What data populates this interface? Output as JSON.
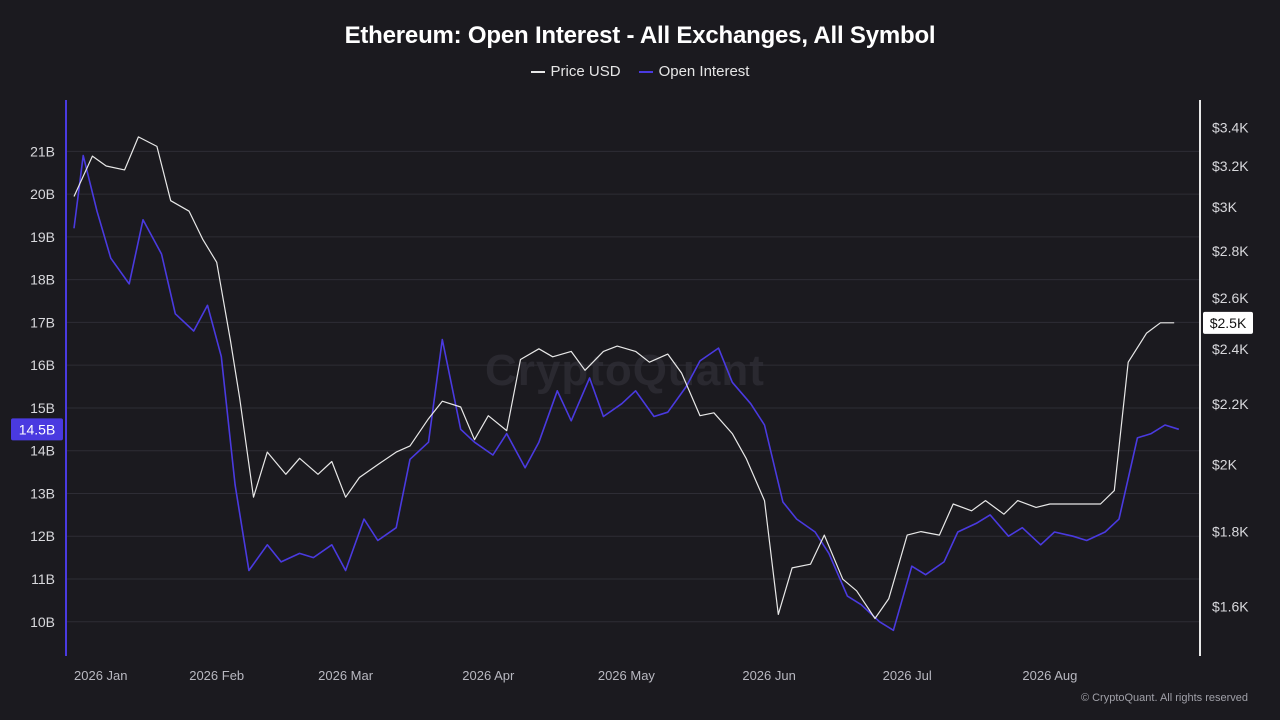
{
  "chart_data": {
    "type": "line",
    "title": "Ethereum: Open Interest - All Exchanges, All Symbol",
    "x_ticks": [
      "2026 Jan",
      "2026 Feb",
      "2026 Mar",
      "2026 Apr",
      "2026 May",
      "2026 Jun",
      "2026 Jul",
      "2026 Aug"
    ],
    "left_axis": {
      "ticks": [
        "21B",
        "20B",
        "19B",
        "18B",
        "17B",
        "16B",
        "15B",
        "14B",
        "13B",
        "12B",
        "11B",
        "10B"
      ],
      "range": [
        9.2,
        22.2
      ],
      "current_label": "14.5B",
      "current_value": 14.5
    },
    "right_axis": {
      "ticks": [
        "$3.4K",
        "$3.2K",
        "$3K",
        "$2.8K",
        "$2.6K",
        "$2.4K",
        "$2.2K",
        "$2K",
        "$1.8K",
        "$1.6K"
      ],
      "range_log": true,
      "current_label": "$2.5K",
      "current_value": 2500
    },
    "series": [
      {
        "name": "Price USD",
        "color": "#e8e8e8",
        "dates": [
          "2026-01-01",
          "2026-01-05",
          "2026-01-08",
          "2026-01-12",
          "2026-01-15",
          "2026-01-19",
          "2026-01-22",
          "2026-01-26",
          "2026-01-29",
          "2026-02-01",
          "2026-02-04",
          "2026-02-06",
          "2026-02-09",
          "2026-02-12",
          "2026-02-16",
          "2026-02-19",
          "2026-02-23",
          "2026-02-26",
          "2026-03-01",
          "2026-03-04",
          "2026-03-08",
          "2026-03-12",
          "2026-03-15",
          "2026-03-19",
          "2026-03-22",
          "2026-03-26",
          "2026-03-29",
          "2026-04-01",
          "2026-04-05",
          "2026-04-08",
          "2026-04-12",
          "2026-04-15",
          "2026-04-19",
          "2026-04-22",
          "2026-04-26",
          "2026-04-29",
          "2026-05-03",
          "2026-05-06",
          "2026-05-10",
          "2026-05-13",
          "2026-05-17",
          "2026-05-20",
          "2026-05-24",
          "2026-05-27",
          "2026-05-31",
          "2026-06-03",
          "2026-06-06",
          "2026-06-10",
          "2026-06-13",
          "2026-06-17",
          "2026-06-20",
          "2026-06-24",
          "2026-06-27",
          "2026-07-01",
          "2026-07-04",
          "2026-07-08",
          "2026-07-11",
          "2026-07-15",
          "2026-07-18",
          "2026-07-22",
          "2026-07-25",
          "2026-07-29",
          "2026-08-01",
          "2026-08-05",
          "2026-08-08",
          "2026-08-12",
          "2026-08-15",
          "2026-08-18",
          "2026-08-22",
          "2026-08-25",
          "2026-08-28"
        ],
        "values": [
          3050,
          3250,
          3200,
          3180,
          3350,
          3300,
          3030,
          2980,
          2850,
          2750,
          2430,
          2220,
          1900,
          2040,
          1970,
          2020,
          1970,
          2010,
          1900,
          1960,
          2000,
          2040,
          2060,
          2150,
          2210,
          2190,
          2080,
          2160,
          2110,
          2360,
          2400,
          2370,
          2390,
          2320,
          2390,
          2410,
          2390,
          2350,
          2380,
          2310,
          2160,
          2170,
          2100,
          2020,
          1890,
          1580,
          1700,
          1710,
          1790,
          1670,
          1640,
          1570,
          1620,
          1790,
          1800,
          1790,
          1880,
          1860,
          1890,
          1850,
          1890,
          1870,
          1880,
          1880,
          1880,
          1880,
          1920,
          2350,
          2460,
          2500,
          2500
        ]
      },
      {
        "name": "Open Interest",
        "color": "#4a3ae0",
        "dates": [
          "2026-01-01",
          "2026-01-03",
          "2026-01-06",
          "2026-01-09",
          "2026-01-13",
          "2026-01-16",
          "2026-01-20",
          "2026-01-23",
          "2026-01-27",
          "2026-01-30",
          "2026-02-02",
          "2026-02-05",
          "2026-02-08",
          "2026-02-12",
          "2026-02-15",
          "2026-02-19",
          "2026-02-22",
          "2026-02-26",
          "2026-03-01",
          "2026-03-05",
          "2026-03-08",
          "2026-03-12",
          "2026-03-15",
          "2026-03-19",
          "2026-03-22",
          "2026-03-26",
          "2026-03-29",
          "2026-04-02",
          "2026-04-05",
          "2026-04-09",
          "2026-04-12",
          "2026-04-16",
          "2026-04-19",
          "2026-04-23",
          "2026-04-26",
          "2026-04-30",
          "2026-05-03",
          "2026-05-07",
          "2026-05-10",
          "2026-05-14",
          "2026-05-17",
          "2026-05-21",
          "2026-05-24",
          "2026-05-28",
          "2026-05-31",
          "2026-06-04",
          "2026-06-07",
          "2026-06-11",
          "2026-06-14",
          "2026-06-18",
          "2026-06-21",
          "2026-06-25",
          "2026-06-28",
          "2026-07-02",
          "2026-07-05",
          "2026-07-09",
          "2026-07-12",
          "2026-07-16",
          "2026-07-19",
          "2026-07-23",
          "2026-07-26",
          "2026-07-30",
          "2026-08-02",
          "2026-08-06",
          "2026-08-09",
          "2026-08-13",
          "2026-08-16",
          "2026-08-20",
          "2026-08-23",
          "2026-08-26",
          "2026-08-29"
        ],
        "values": [
          19.2,
          20.9,
          19.6,
          18.5,
          17.9,
          19.4,
          18.6,
          17.2,
          16.8,
          17.4,
          16.2,
          13.2,
          11.2,
          11.8,
          11.4,
          11.6,
          11.5,
          11.8,
          11.2,
          12.4,
          11.9,
          12.2,
          13.8,
          14.2,
          16.6,
          14.5,
          14.2,
          13.9,
          14.4,
          13.6,
          14.2,
          15.4,
          14.7,
          15.7,
          14.8,
          15.1,
          15.4,
          14.8,
          14.9,
          15.5,
          16.1,
          16.4,
          15.6,
          15.1,
          14.6,
          12.8,
          12.4,
          12.1,
          11.6,
          10.6,
          10.4,
          10.0,
          9.8,
          11.3,
          11.1,
          11.4,
          12.1,
          12.3,
          12.5,
          12.0,
          12.2,
          11.8,
          12.1,
          12.0,
          11.9,
          12.1,
          12.4,
          14.3,
          14.4,
          14.6,
          14.5
        ]
      }
    ],
    "watermark": "CryptoQuant",
    "copyright": "© CryptoQuant. All rights reserved"
  }
}
